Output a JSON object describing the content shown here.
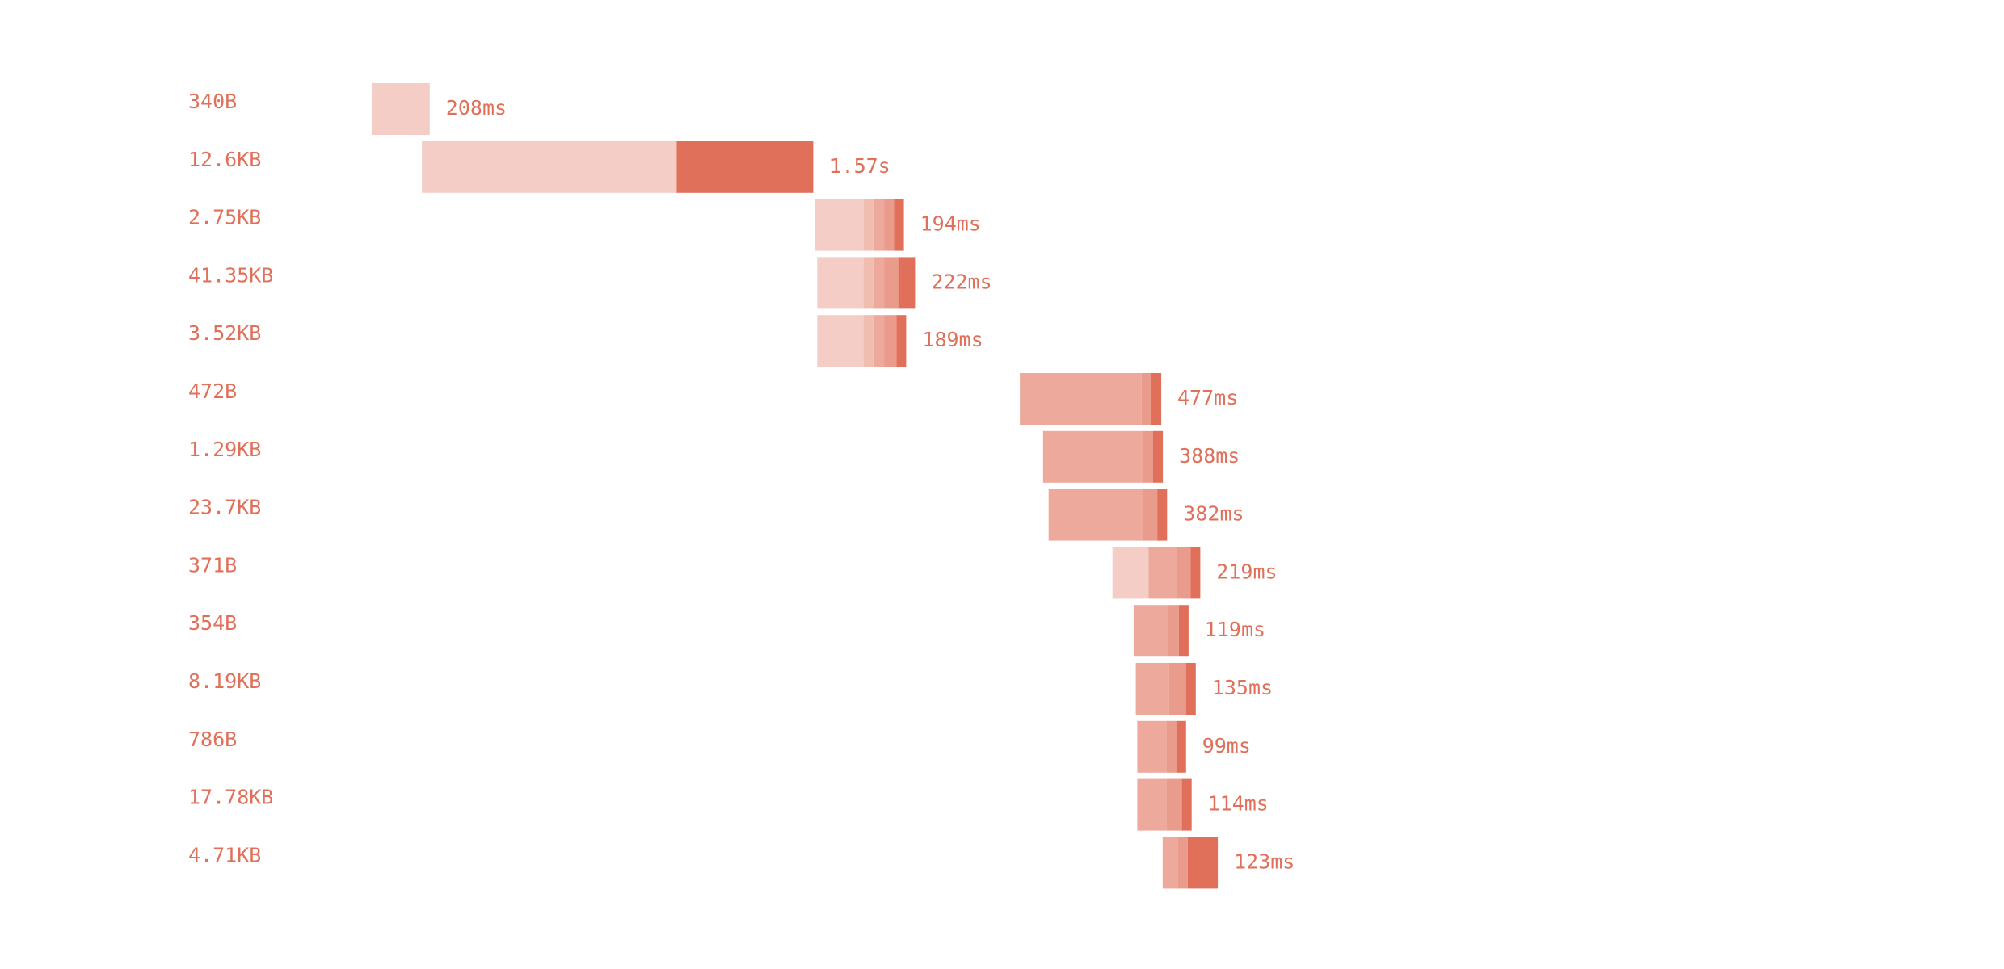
{
  "chart_data": {
    "type": "bar",
    "subtype": "waterfall-timeline",
    "grid": false,
    "legend": false,
    "colors": {
      "text": "#e0705a",
      "phase1": "#f4cec6",
      "phase2": "#f0bdb1",
      "phase3": "#eda99c",
      "phase4": "#e99c8c",
      "phase5": "#e0705a"
    },
    "requests": [
      {
        "size": "340B",
        "duration": "208ms",
        "start_ms": 0,
        "phases_ms": [
          208,
          0,
          0,
          0,
          0
        ]
      },
      {
        "size": "12.6KB",
        "duration": "1.57s",
        "start_ms": 180,
        "phases_ms": [
          914,
          0,
          0,
          0,
          490
        ]
      },
      {
        "size": "2.75KB",
        "duration": "194ms",
        "start_ms": 1590,
        "phases_ms": [
          174,
          35,
          40,
          35,
          35
        ]
      },
      {
        "size": "41.35KB",
        "duration": "222ms",
        "start_ms": 1598,
        "phases_ms": [
          166,
          35,
          40,
          50,
          60
        ]
      },
      {
        "size": "3.52KB",
        "duration": "189ms",
        "start_ms": 1598,
        "phases_ms": [
          166,
          35,
          40,
          43,
          35
        ]
      },
      {
        "size": "472B",
        "duration": "477ms",
        "start_ms": 2325,
        "phases_ms": [
          0,
          0,
          437,
          35,
          35
        ]
      },
      {
        "size": "1.29KB",
        "duration": "388ms",
        "start_ms": 2408,
        "phases_ms": [
          0,
          0,
          360,
          35,
          35
        ]
      },
      {
        "size": "23.7KB",
        "duration": "382ms",
        "start_ms": 2428,
        "phases_ms": [
          0,
          0,
          340,
          50,
          35
        ]
      },
      {
        "size": "371B",
        "duration": "219ms",
        "start_ms": 2657,
        "phases_ms": [
          130,
          0,
          100,
          50,
          35
        ]
      },
      {
        "size": "354B",
        "duration": "119ms",
        "start_ms": 2733,
        "phases_ms": [
          0,
          0,
          120,
          42,
          35
        ]
      },
      {
        "size": "8.19KB",
        "duration": "135ms",
        "start_ms": 2741,
        "phases_ms": [
          0,
          0,
          118,
          62,
          35
        ]
      },
      {
        "size": "786B",
        "duration": "99ms",
        "start_ms": 2746,
        "phases_ms": [
          0,
          0,
          105,
          35,
          35
        ]
      },
      {
        "size": "17.78KB",
        "duration": "114ms",
        "start_ms": 2746,
        "phases_ms": [
          0,
          0,
          105,
          55,
          35
        ]
      },
      {
        "size": "4.71KB",
        "duration": "123ms",
        "start_ms": 2837,
        "phases_ms": [
          0,
          0,
          55,
          35,
          108
        ]
      }
    ]
  }
}
